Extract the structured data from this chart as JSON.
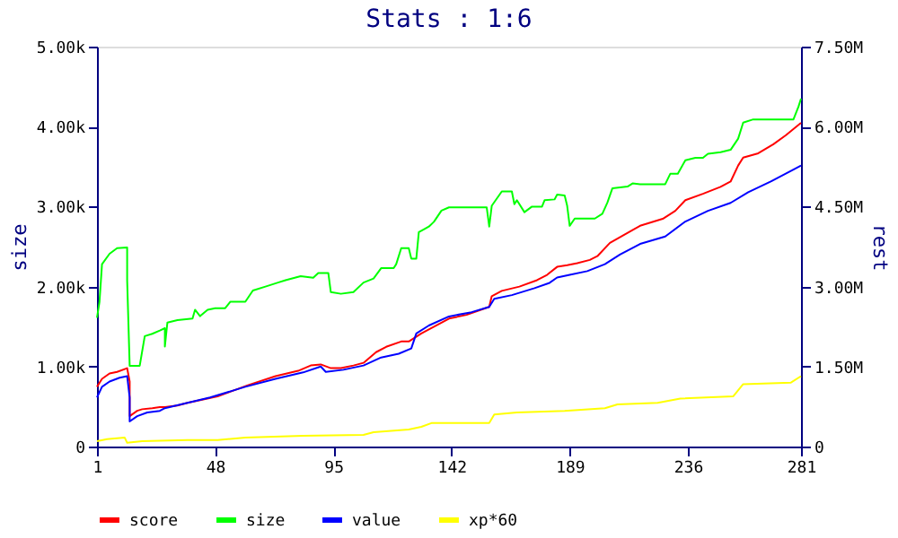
{
  "chart_data": {
    "type": "line",
    "title": "Stats : 1:6",
    "ylabel": "size",
    "y2label": "rest",
    "xlim": [
      1,
      281
    ],
    "xticks": [
      1,
      48,
      95,
      142,
      189,
      236,
      281
    ],
    "ylim": [
      0,
      5000
    ],
    "yticks": [
      0,
      {
        "value": 1000,
        "label": "1.00k"
      },
      {
        "value": 2000,
        "label": "2.00k"
      },
      {
        "value": 3000,
        "label": "3.00k"
      },
      {
        "value": 4000,
        "label": "4.00k"
      },
      {
        "value": 5000,
        "label": "5.00k"
      }
    ],
    "y2lim": [
      0,
      7500000
    ],
    "y2ticks": [
      0,
      {
        "value": 1500000,
        "label": "1.50M"
      },
      {
        "value": 3000000,
        "label": "3.00M"
      },
      {
        "value": 4500000,
        "label": "4.50M"
      },
      {
        "value": 6000000,
        "label": "6.00M"
      },
      {
        "value": 7500000,
        "label": "7.50M"
      }
    ],
    "grid": false,
    "legend": "bottom",
    "series": [
      {
        "name": "score",
        "color": "#ff0000",
        "axis": "y2",
        "x": [
          1,
          3,
          6,
          9,
          13,
          14,
          14,
          17,
          19,
          23,
          26,
          28,
          33,
          37,
          42,
          49,
          61,
          72,
          81,
          86,
          90,
          94,
          98,
          103,
          107,
          112,
          116,
          122,
          125,
          130,
          134,
          141,
          148,
          157,
          158,
          162,
          169,
          176,
          180,
          184,
          188,
          192,
          197,
          200,
          205,
          217,
          226,
          231,
          235,
          242,
          249,
          253,
          256,
          258,
          264,
          270,
          275,
          281
        ],
        "values": [
          1120000,
          1270000,
          1370000,
          1400000,
          1470000,
          1220000,
          570000,
          670000,
          700000,
          720000,
          740000,
          740000,
          770000,
          820000,
          870000,
          940000,
          1150000,
          1320000,
          1420000,
          1520000,
          1540000,
          1470000,
          1470000,
          1520000,
          1570000,
          1770000,
          1870000,
          1970000,
          1970000,
          2120000,
          2220000,
          2400000,
          2470000,
          2620000,
          2820000,
          2920000,
          3000000,
          3120000,
          3220000,
          3370000,
          3400000,
          3440000,
          3500000,
          3570000,
          3820000,
          4140000,
          4270000,
          4420000,
          4620000,
          4740000,
          4870000,
          4970000,
          5270000,
          5420000,
          5500000,
          5670000,
          5840000,
          6070000
        ]
      },
      {
        "name": "size",
        "color": "#00ff00",
        "x": [
          1,
          2,
          3,
          6,
          9,
          13,
          13,
          14,
          18,
          20,
          23,
          26,
          28,
          28,
          29,
          33,
          39,
          40,
          42,
          45,
          48,
          52,
          54,
          60,
          63,
          68,
          73,
          76,
          82,
          87,
          89,
          93,
          94,
          98,
          103,
          107,
          111,
          114,
          119,
          120,
          122,
          125,
          126,
          128,
          129,
          133,
          135,
          138,
          141,
          156,
          157,
          158,
          162,
          166,
          167,
          168,
          171,
          174,
          178,
          179,
          183,
          184,
          187,
          188,
          189,
          191,
          199,
          202,
          204,
          206,
          212,
          214,
          217,
          227,
          229,
          232,
          235,
          239,
          242,
          244,
          249,
          253,
          256,
          258,
          262,
          278,
          280,
          281
        ],
        "values": [
          1610,
          1810,
          2280,
          2410,
          2480,
          2490,
          2080,
          1010,
          1010,
          1380,
          1410,
          1450,
          1480,
          1250,
          1550,
          1580,
          1600,
          1710,
          1630,
          1710,
          1730,
          1730,
          1810,
          1810,
          1950,
          2000,
          2050,
          2080,
          2130,
          2110,
          2170,
          2170,
          1930,
          1910,
          1930,
          2050,
          2100,
          2230,
          2230,
          2280,
          2480,
          2480,
          2350,
          2350,
          2680,
          2750,
          2810,
          2950,
          2990,
          2990,
          2750,
          3010,
          3190,
          3190,
          3030,
          3080,
          2930,
          3000,
          3000,
          3080,
          3090,
          3150,
          3140,
          3010,
          2760,
          2850,
          2850,
          2910,
          3050,
          3230,
          3250,
          3290,
          3280,
          3280,
          3410,
          3410,
          3580,
          3610,
          3610,
          3660,
          3680,
          3710,
          3850,
          4050,
          4090,
          4090,
          4250,
          4350
        ]
      },
      {
        "name": "value",
        "color": "#0000ff",
        "axis": "y2",
        "x": [
          1,
          3,
          6,
          10,
          13,
          14,
          14,
          17,
          21,
          26,
          28,
          37,
          46,
          60,
          72,
          83,
          90,
          92,
          99,
          107,
          114,
          121,
          126,
          128,
          133,
          141,
          150,
          157,
          159,
          166,
          175,
          181,
          184,
          189,
          196,
          203,
          209,
          217,
          227,
          235,
          244,
          253,
          260,
          269,
          279,
          281
        ],
        "values": [
          920000,
          1120000,
          1220000,
          1290000,
          1320000,
          920000,
          470000,
          570000,
          640000,
          670000,
          720000,
          820000,
          920000,
          1120000,
          1270000,
          1390000,
          1500000,
          1400000,
          1440000,
          1520000,
          1670000,
          1740000,
          1840000,
          2120000,
          2270000,
          2440000,
          2520000,
          2620000,
          2770000,
          2840000,
          2970000,
          3070000,
          3170000,
          3220000,
          3290000,
          3420000,
          3600000,
          3800000,
          3940000,
          4220000,
          4420000,
          4570000,
          4770000,
          4970000,
          5220000,
          5270000
        ]
      },
      {
        "name": "xp*60",
        "color": "#ffff00",
        "axis": "y2",
        "x": [
          1,
          5,
          12,
          13,
          19,
          37,
          49,
          60,
          83,
          107,
          111,
          125,
          130,
          134,
          141,
          157,
          159,
          168,
          187,
          203,
          208,
          224,
          233,
          254,
          258,
          277,
          281
        ],
        "values": [
          100000,
          140000,
          170000,
          70000,
          100000,
          120000,
          120000,
          170000,
          200000,
          220000,
          270000,
          320000,
          370000,
          440000,
          440000,
          440000,
          600000,
          640000,
          670000,
          720000,
          790000,
          820000,
          900000,
          940000,
          1170000,
          1200000,
          1320000
        ]
      }
    ]
  }
}
